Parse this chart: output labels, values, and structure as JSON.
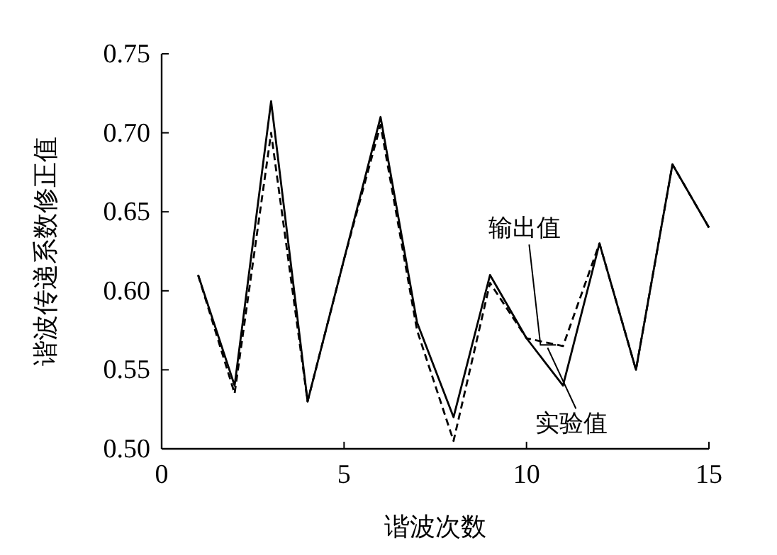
{
  "chart_data": {
    "type": "line",
    "xlabel": "谐波次数",
    "ylabel": "谐波传递系数修正值",
    "x": [
      1,
      2,
      3,
      4,
      5,
      6,
      7,
      8,
      9,
      10,
      11,
      12,
      13,
      14,
      15
    ],
    "series": [
      {
        "name": "实验值",
        "color": "#000000",
        "line_style": "solid",
        "values": [
          0.61,
          0.54,
          0.72,
          0.53,
          0.62,
          0.71,
          0.58,
          0.52,
          0.61,
          0.57,
          0.54,
          0.63,
          0.55,
          0.68,
          0.64
        ]
      },
      {
        "name": "输出值",
        "color": "#000000",
        "line_style": "dashed",
        "values": [
          0.61,
          0.535,
          0.7,
          0.53,
          0.62,
          0.705,
          0.575,
          0.505,
          0.605,
          0.57,
          0.565,
          0.63,
          0.55,
          0.68,
          0.64
        ]
      }
    ],
    "xlim": [
      0,
      15
    ],
    "xticks": [
      0,
      5,
      10,
      15
    ],
    "ylim": [
      0.5,
      0.75
    ],
    "yticks": [
      {
        "value": 0.5,
        "label": "0.50"
      },
      {
        "value": 0.55,
        "label": "0.55"
      },
      {
        "value": 0.6,
        "label": "0.60"
      },
      {
        "value": 0.65,
        "label": "0.65"
      },
      {
        "value": 0.7,
        "label": "0.70"
      },
      {
        "value": 0.75,
        "label": "0.75"
      }
    ],
    "grid": false,
    "legend": false,
    "marker": "none"
  }
}
